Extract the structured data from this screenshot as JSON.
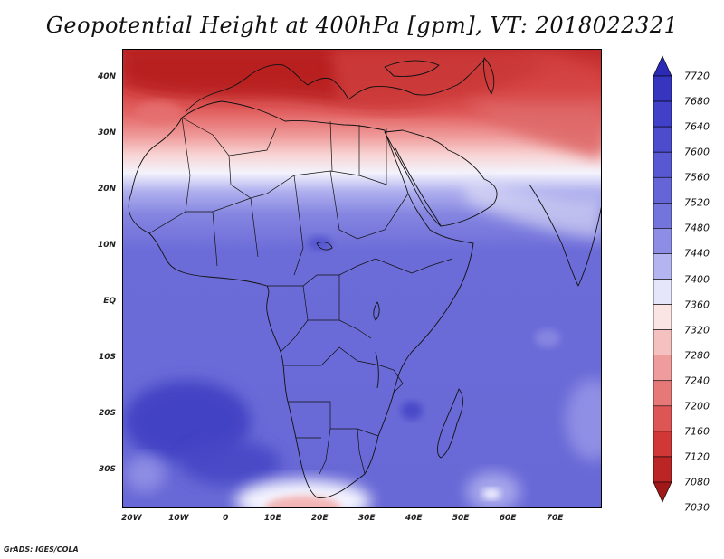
{
  "title": "Geopotential Height at 400hPa [gpm], VT: 2018022321",
  "credit": "GrADS: IGES/COLA",
  "map": {
    "lon_range": [
      -22,
      80
    ],
    "lat_range": [
      -37,
      45
    ],
    "lat_ticks": [
      {
        "lat": 40,
        "label": "40N"
      },
      {
        "lat": 30,
        "label": "30N"
      },
      {
        "lat": 20,
        "label": "20N"
      },
      {
        "lat": 10,
        "label": "10N"
      },
      {
        "lat": 0,
        "label": "EQ"
      },
      {
        "lat": -10,
        "label": "10S"
      },
      {
        "lat": -20,
        "label": "20S"
      },
      {
        "lat": -30,
        "label": "30S"
      }
    ],
    "lon_ticks": [
      {
        "lon": -20,
        "label": "20W"
      },
      {
        "lon": -10,
        "label": "10W"
      },
      {
        "lon": 0,
        "label": "0"
      },
      {
        "lon": 10,
        "label": "10E"
      },
      {
        "lon": 20,
        "label": "20E"
      },
      {
        "lon": 30,
        "label": "30E"
      },
      {
        "lon": 40,
        "label": "40E"
      },
      {
        "lon": 50,
        "label": "50E"
      },
      {
        "lon": 60,
        "label": "60E"
      },
      {
        "lon": 70,
        "label": "70E"
      }
    ]
  },
  "colorbar": {
    "labels": [
      "7720",
      "7680",
      "7640",
      "7600",
      "7560",
      "7520",
      "7480",
      "7440",
      "7400",
      "7360",
      "7320",
      "7280",
      "7240",
      "7200",
      "7160",
      "7120",
      "7080",
      "7030"
    ],
    "colors": [
      "#2a2ab5",
      "#3535c0",
      "#4040c8",
      "#4c4ccd",
      "#5858d2",
      "#6565d8",
      "#7474dd",
      "#8d8de6",
      "#b4b4f0",
      "#e6e6fa",
      "#fbe4e4",
      "#f4c0c0",
      "#ee9c9c",
      "#e67878",
      "#dd5555",
      "#d03838",
      "#bb2525",
      "#a01818"
    ]
  },
  "colors": {
    "ocean_blue": "#6a6ad9",
    "deep_blue": "#4646c6",
    "light_blue": "#9a9ae8",
    "white_band": "#f2f2fb",
    "pink": "#f2b0b0",
    "red": "#dd4848",
    "deep_red": "#b82020"
  }
}
